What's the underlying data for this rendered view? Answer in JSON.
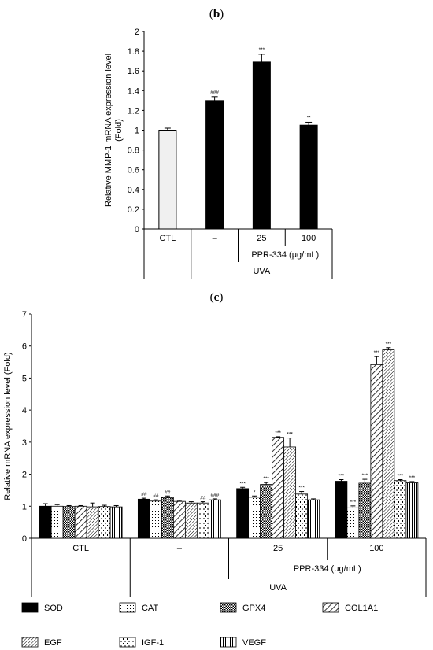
{
  "chart_data": [
    {
      "panel": "b",
      "type": "bar",
      "ylabel": "Relative MMP-1 mRNA expression level (Fold)",
      "ylabel_lines": [
        "Relative MMP-1 mRNA expression level",
        "(Fold)"
      ],
      "ylim": [
        0,
        2
      ],
      "yticks": [
        "0",
        "0.2",
        "0.4",
        "0.6",
        "0.8",
        "1",
        "1.2",
        "1.4",
        "1.6",
        "1.8",
        "2"
      ],
      "categories": [
        "CTL",
        "–",
        "25",
        "100"
      ],
      "values": [
        1.0,
        1.3,
        1.69,
        1.05
      ],
      "errors": [
        0.02,
        0.04,
        0.08,
        0.03
      ],
      "significance": [
        "",
        "###",
        "***",
        "**"
      ],
      "bar_colors": [
        "#f0f0f0",
        "#000000",
        "#000000",
        "#000000"
      ],
      "treatment_label": "PPR-334 (μg/mL)",
      "uva_label": "UVA"
    },
    {
      "panel": "c",
      "type": "bar",
      "ylabel": "Relative mRNA expression level (Fold)",
      "ylim": [
        0,
        7
      ],
      "yticks": [
        "0",
        "1",
        "2",
        "3",
        "4",
        "5",
        "6",
        "7"
      ],
      "categories": [
        "CTL",
        "–",
        "25",
        "100"
      ],
      "series": [
        {
          "name": "SOD",
          "pattern": "solid",
          "values": [
            1.0,
            1.22,
            1.55,
            1.78
          ],
          "errors": [
            0.08,
            0.03,
            0.04,
            0.05
          ],
          "significance": [
            "",
            "##",
            "***",
            "***"
          ]
        },
        {
          "name": "CAT",
          "pattern": "dots",
          "values": [
            1.0,
            1.16,
            1.28,
            0.95
          ],
          "errors": [
            0.05,
            0.04,
            0.04,
            0.06
          ],
          "significance": [
            "",
            "##",
            "*",
            "***"
          ]
        },
        {
          "name": "GPX4",
          "pattern": "checker",
          "values": [
            0.99,
            1.27,
            1.68,
            1.72
          ],
          "errors": [
            0.03,
            0.05,
            0.06,
            0.12
          ],
          "significance": [
            "",
            "##",
            "***",
            "***"
          ]
        },
        {
          "name": "COL1A1",
          "pattern": "wide-diag",
          "values": [
            1.0,
            1.15,
            3.15,
            5.42
          ],
          "errors": [
            0.02,
            0.03,
            0.02,
            0.25
          ],
          "significance": [
            "",
            "",
            "***",
            "***"
          ]
        },
        {
          "name": "EGF",
          "pattern": "dense-diag",
          "values": [
            0.98,
            1.1,
            2.85,
            5.88
          ],
          "errors": [
            0.12,
            0.04,
            0.28,
            0.07
          ],
          "significance": [
            "",
            "",
            "***",
            "***"
          ]
        },
        {
          "name": "IGF-1",
          "pattern": "dashes",
          "values": [
            0.99,
            1.1,
            1.38,
            1.8
          ],
          "errors": [
            0.04,
            0.04,
            0.08,
            0.03
          ],
          "significance": [
            "",
            "##",
            "***",
            "***"
          ]
        },
        {
          "name": "VEGF",
          "pattern": "vertical",
          "values": [
            0.98,
            1.2,
            1.2,
            1.73
          ],
          "errors": [
            0.04,
            0.03,
            0.03,
            0.04
          ],
          "significance": [
            "",
            "###",
            "",
            "***"
          ]
        }
      ],
      "treatment_label": "PPR-334 (μg/mL)",
      "uva_label": "UVA",
      "legend_position": "bottom"
    }
  ]
}
